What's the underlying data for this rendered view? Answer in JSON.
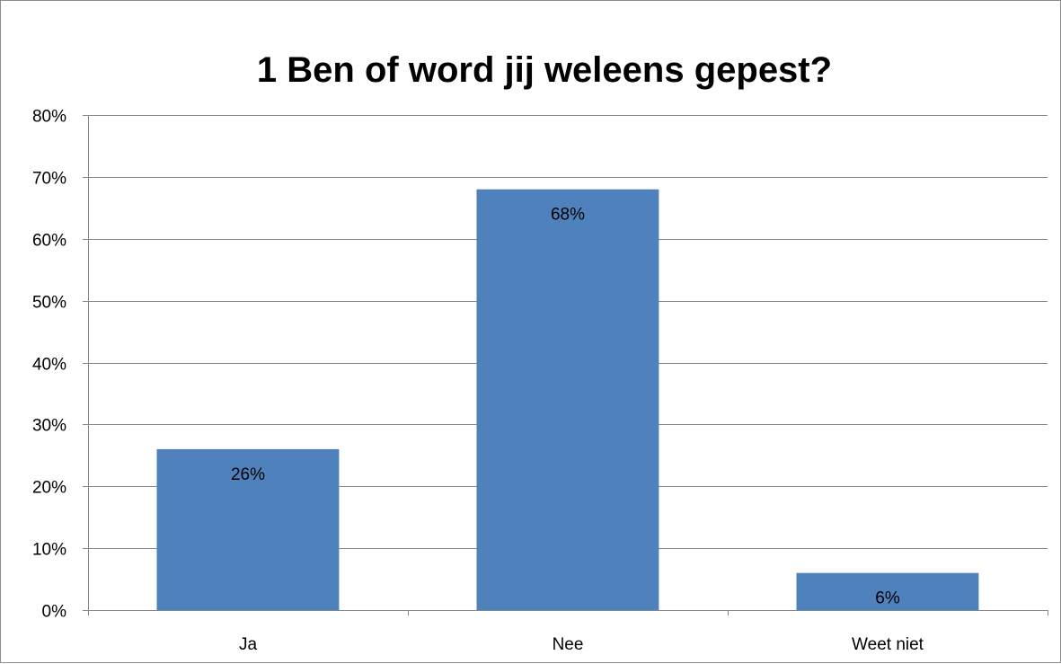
{
  "chart_data": {
    "type": "bar",
    "title": "1 Ben of word jij weleens gepest?",
    "categories": [
      "Ja",
      "Nee",
      "Weet niet"
    ],
    "values": [
      0.26,
      0.68,
      0.06
    ],
    "data_labels": [
      "26%",
      "68%",
      "6%"
    ],
    "xlabel": "",
    "ylabel": "",
    "ylim": [
      0,
      0.8
    ],
    "yticks": [
      0,
      0.1,
      0.2,
      0.3,
      0.4,
      0.5,
      0.6,
      0.7,
      0.8
    ],
    "ytick_labels": [
      "0%",
      "10%",
      "20%",
      "30%",
      "40%",
      "50%",
      "60%",
      "70%",
      "80%"
    ],
    "grid": true,
    "legend": "none",
    "colors": {
      "bar": "#4f81bd",
      "gridline": "#868686",
      "text": "#000000"
    }
  }
}
